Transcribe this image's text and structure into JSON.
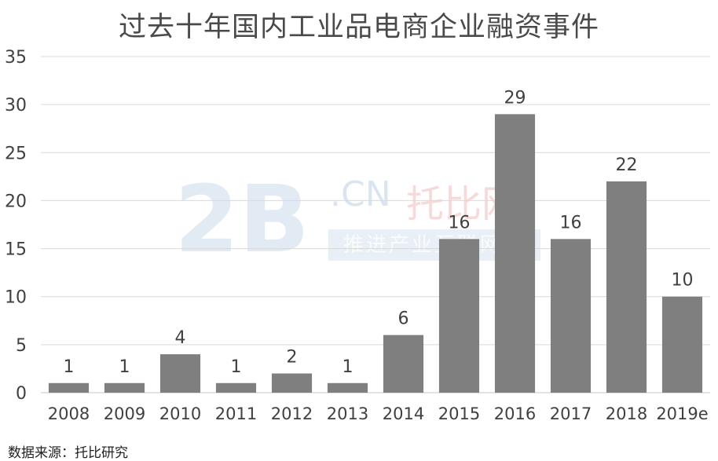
{
  "watermark": {
    "logo_text": "2B",
    "domain_text": ".CN",
    "brand_name": "托比网",
    "slogan": "推进产业互联网化"
  },
  "source_note": "数据来源：托比研究",
  "chart_data": {
    "type": "bar",
    "title": "过去十年国内工业品电商企业融资事件",
    "xlabel": "",
    "ylabel": "",
    "categories": [
      "2008",
      "2009",
      "2010",
      "2011",
      "2012",
      "2013",
      "2014",
      "2015",
      "2016",
      "2017",
      "2018",
      "2019e"
    ],
    "values": [
      1,
      1,
      4,
      1,
      2,
      1,
      6,
      16,
      29,
      16,
      22,
      10
    ],
    "ylim": [
      0,
      35
    ],
    "yticks": [
      0,
      5,
      10,
      15,
      20,
      25,
      30,
      35
    ],
    "grid": true,
    "legend": "none",
    "bar_color": "#7f7f7f",
    "grid_color": "#d9d9d9"
  }
}
